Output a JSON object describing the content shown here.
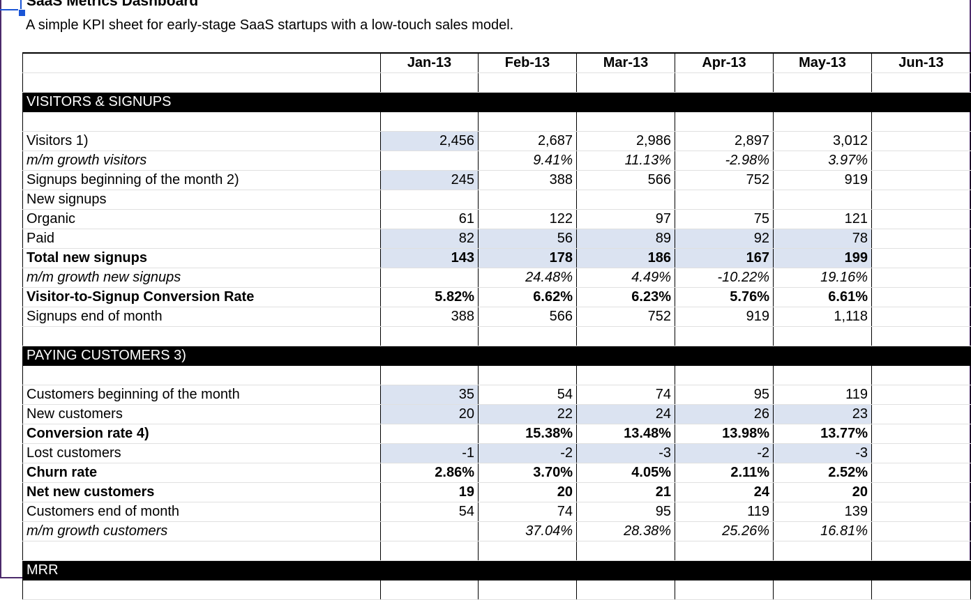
{
  "sheet": {
    "title": "SaaS Metrics Dashboard",
    "subtitle": "A simple KPI sheet for early-stage SaaS startups with a low-touch sales model."
  },
  "columns": [
    "Jan-13",
    "Feb-13",
    "Mar-13",
    "Apr-13",
    "May-13",
    "Jun-13"
  ],
  "sections": {
    "visitors": "VISITORS & SIGNUPS",
    "customers": "PAYING CUSTOMERS 3)",
    "mrr": "MRR"
  },
  "rows": {
    "visitors": {
      "label": "Visitors 1)",
      "values": [
        "2,456",
        "2,687",
        "2,986",
        "2,897",
        "3,012",
        ""
      ]
    },
    "mm_visitors": {
      "label": "m/m growth visitors",
      "values": [
        "",
        "9.41%",
        "11.13%",
        "-2.98%",
        "3.97%",
        ""
      ]
    },
    "signups_begin": {
      "label": "Signups beginning of the month 2)",
      "values": [
        "245",
        "388",
        "566",
        "752",
        "919",
        ""
      ]
    },
    "new_signups": {
      "label": "New signups",
      "values": [
        "",
        "",
        "",
        "",
        "",
        ""
      ]
    },
    "organic": {
      "label": "Organic",
      "values": [
        "61",
        "122",
        "97",
        "75",
        "121",
        ""
      ]
    },
    "paid": {
      "label": "Paid",
      "values": [
        "82",
        "56",
        "89",
        "92",
        "78",
        ""
      ]
    },
    "total_new_signups": {
      "label": "Total new signups",
      "values": [
        "143",
        "178",
        "186",
        "167",
        "199",
        ""
      ]
    },
    "mm_new_signups": {
      "label": "m/m growth new signups",
      "values": [
        "",
        "24.48%",
        "4.49%",
        "-10.22%",
        "19.16%",
        ""
      ]
    },
    "conv_rate": {
      "label": "Visitor-to-Signup Conversion Rate",
      "values": [
        "5.82%",
        "6.62%",
        "6.23%",
        "5.76%",
        "6.61%",
        ""
      ]
    },
    "signups_end": {
      "label": "Signups end of month",
      "values": [
        "388",
        "566",
        "752",
        "919",
        "1,118",
        ""
      ]
    },
    "cust_begin": {
      "label": "Customers beginning of the month",
      "values": [
        "35",
        "54",
        "74",
        "95",
        "119",
        ""
      ]
    },
    "new_cust": {
      "label": "New customers",
      "values": [
        "20",
        "22",
        "24",
        "26",
        "23",
        ""
      ]
    },
    "conv_rate4": {
      "label": "Conversion rate 4)",
      "values": [
        "",
        "15.38%",
        "13.48%",
        "13.98%",
        "13.77%",
        ""
      ]
    },
    "lost_cust": {
      "label": "Lost customers",
      "values": [
        "-1",
        "-2",
        "-3",
        "-2",
        "-3",
        ""
      ]
    },
    "churn": {
      "label": "Churn rate",
      "values": [
        "2.86%",
        "3.70%",
        "4.05%",
        "2.11%",
        "2.52%",
        ""
      ]
    },
    "net_new": {
      "label": "Net new customers",
      "values": [
        "19",
        "20",
        "21",
        "24",
        "20",
        ""
      ]
    },
    "cust_end": {
      "label": "Customers end of month",
      "values": [
        "54",
        "74",
        "95",
        "119",
        "139",
        ""
      ]
    },
    "mm_cust": {
      "label": "m/m growth customers",
      "values": [
        "",
        "37.04%",
        "28.38%",
        "25.26%",
        "16.81%",
        ""
      ]
    }
  }
}
